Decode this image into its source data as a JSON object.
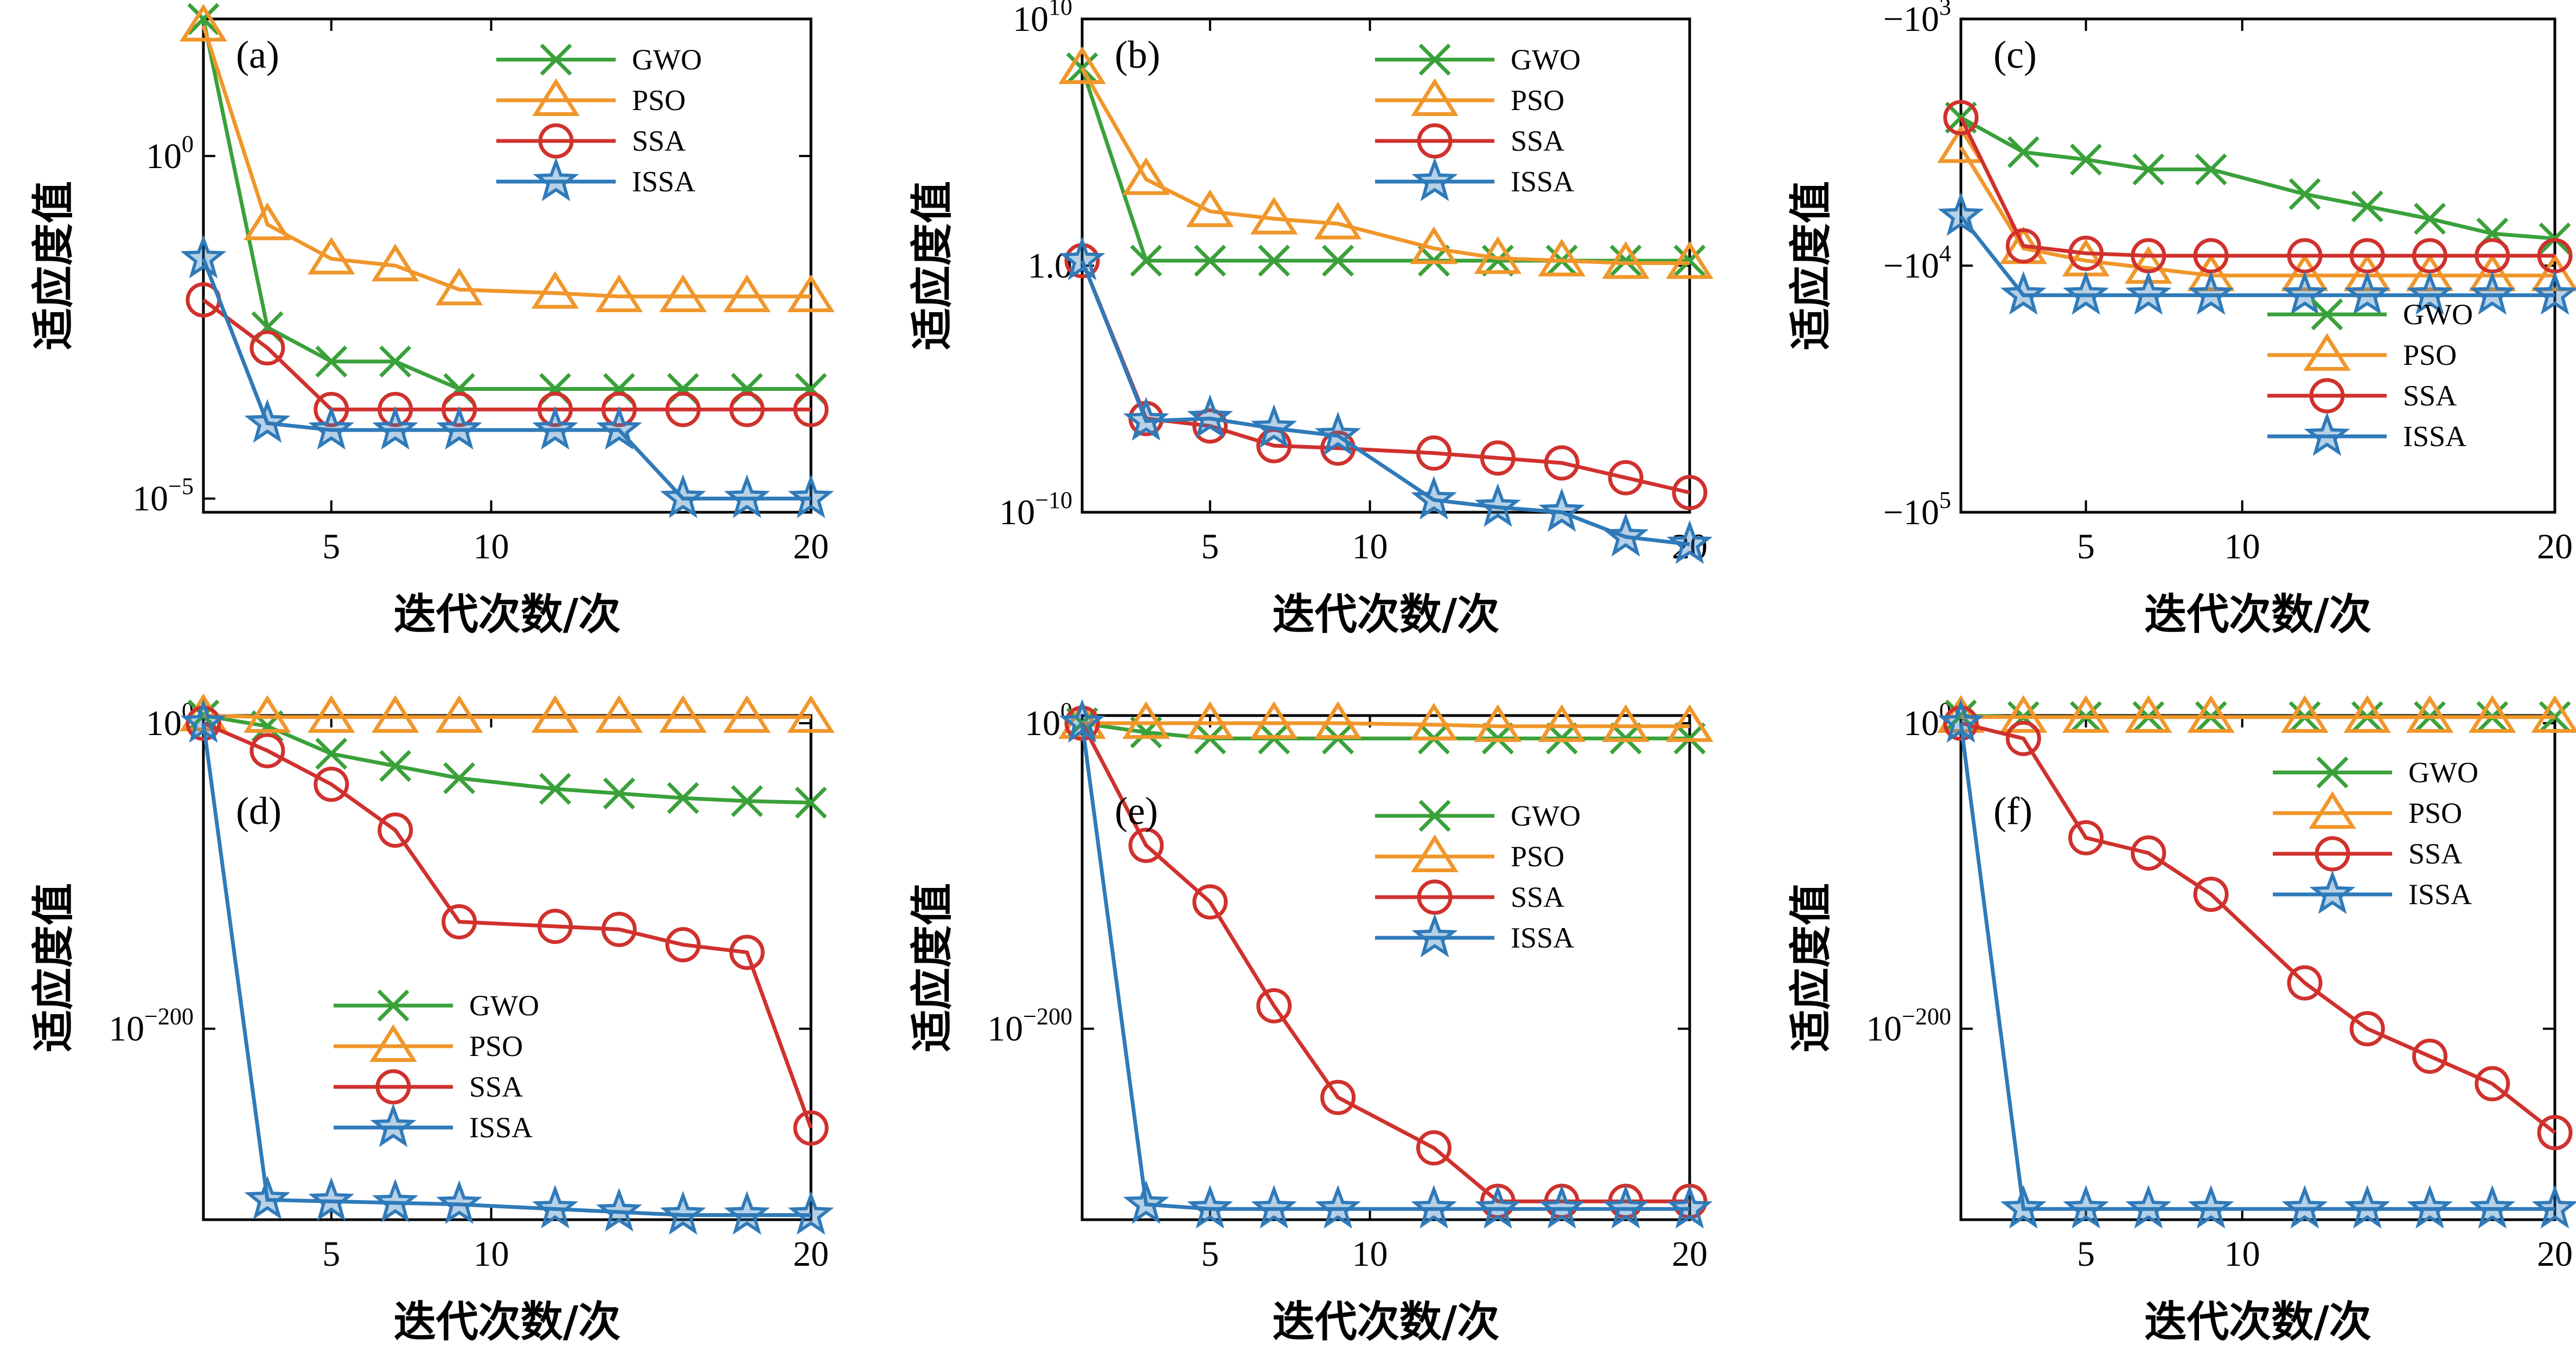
{
  "colors": {
    "GWO": "#3aa13a",
    "PSO": "#f0962a",
    "SSA": "#d0312d",
    "ISSA": "#2f7ab9"
  },
  "chart_data": [
    {
      "type": "line",
      "panel": "(a)",
      "xlabel": "迭代次数/次",
      "ylabel": "适应度值",
      "xlim": [
        1,
        20
      ],
      "xticks": [
        "5",
        "10",
        "20"
      ],
      "yscale": "log",
      "ylim_exp": [
        -5.2,
        2.0
      ],
      "yticks": [
        {
          "base": "10",
          "exp": "0",
          "value": 0
        },
        {
          "base": "10",
          "exp": "−5",
          "value": -5
        }
      ],
      "legend": "top-right",
      "x": [
        1,
        3,
        5,
        7,
        9,
        12,
        14,
        16,
        18,
        20
      ],
      "series": [
        {
          "name": "GWO",
          "marker": "x",
          "log_values": [
            2.0,
            -2.5,
            -3.0,
            -3.0,
            -3.4,
            -3.4,
            -3.4,
            -3.4,
            -3.4,
            -3.4
          ]
        },
        {
          "name": "PSO",
          "marker": "triangle",
          "log_values": [
            1.9,
            -1.0,
            -1.5,
            -1.6,
            -1.95,
            -2.0,
            -2.05,
            -2.05,
            -2.05,
            -2.05
          ]
        },
        {
          "name": "SSA",
          "marker": "circle",
          "log_values": [
            -2.1,
            -2.8,
            -3.7,
            -3.7,
            -3.7,
            -3.7,
            -3.7,
            -3.7,
            -3.7,
            -3.7
          ]
        },
        {
          "name": "ISSA",
          "marker": "star",
          "log_values": [
            -1.5,
            -3.9,
            -4.0,
            -4.0,
            -4.0,
            -4.0,
            -4.0,
            -5.0,
            -5.0,
            -5.0
          ]
        }
      ]
    },
    {
      "type": "line",
      "panel": "(b)",
      "xlabel": "迭代次数/次",
      "ylabel": "适应度值",
      "xlim": [
        1,
        20
      ],
      "xticks": [
        "5",
        "10",
        "20"
      ],
      "yscale": "log",
      "ylim_exp": [
        -10,
        10
      ],
      "yticks": [
        {
          "base": "10",
          "exp": "10",
          "value": 10
        },
        {
          "base": "10",
          "exp": "",
          "value": 0,
          "label": "1.0"
        },
        {
          "base": "10",
          "exp": "−10",
          "value": -10
        }
      ],
      "legend": "top-right",
      "x": [
        1,
        3,
        5,
        7,
        9,
        12,
        14,
        16,
        18,
        20
      ],
      "series": [
        {
          "name": "GWO",
          "marker": "x",
          "log_values": [
            8.0,
            0.2,
            0.2,
            0.2,
            0.2,
            0.2,
            0.2,
            0.2,
            0.2,
            0.2
          ]
        },
        {
          "name": "PSO",
          "marker": "triangle",
          "log_values": [
            8.0,
            3.5,
            2.2,
            1.9,
            1.7,
            0.7,
            0.3,
            0.2,
            0.1,
            0.1
          ]
        },
        {
          "name": "SSA",
          "marker": "circle",
          "log_values": [
            0.2,
            -6.2,
            -6.5,
            -7.3,
            -7.4,
            -7.6,
            -7.8,
            -8.0,
            -8.6,
            -9.2
          ]
        },
        {
          "name": "ISSA",
          "marker": "star",
          "log_values": [
            0.2,
            -6.3,
            -6.2,
            -6.6,
            -6.9,
            -9.5,
            -9.8,
            -10.0,
            -11.0,
            -11.3
          ]
        }
      ]
    },
    {
      "type": "line",
      "panel": "(c)",
      "xlabel": "迭代次数/次",
      "ylabel": "适应度值",
      "xlim": [
        1,
        20
      ],
      "xticks": [
        "5",
        "10",
        "20"
      ],
      "yscale": "neg-log",
      "ylim_exp": [
        3,
        5
      ],
      "yticks": [
        {
          "base": "−10",
          "exp": "3",
          "value": 3
        },
        {
          "base": "−10",
          "exp": "4",
          "value": 4
        },
        {
          "base": "−10",
          "exp": "5",
          "value": 5
        }
      ],
      "legend": "lower-right",
      "x": [
        1,
        3,
        5,
        7,
        9,
        12,
        14,
        16,
        18,
        20
      ],
      "series": [
        {
          "name": "GWO",
          "marker": "x",
          "log_values": [
            3.4,
            3.54,
            3.57,
            3.61,
            3.61,
            3.71,
            3.76,
            3.81,
            3.87,
            3.89
          ]
        },
        {
          "name": "PSO",
          "marker": "triangle",
          "log_values": [
            3.52,
            3.93,
            3.98,
            4.01,
            4.04,
            4.04,
            4.04,
            4.04,
            4.04,
            4.04
          ]
        },
        {
          "name": "SSA",
          "marker": "circle",
          "log_values": [
            3.4,
            3.92,
            3.95,
            3.96,
            3.96,
            3.96,
            3.96,
            3.96,
            3.96,
            3.96
          ]
        },
        {
          "name": "ISSA",
          "marker": "star",
          "log_values": [
            3.8,
            4.12,
            4.12,
            4.12,
            4.12,
            4.12,
            4.12,
            4.12,
            4.12,
            4.12
          ]
        }
      ]
    },
    {
      "type": "line",
      "panel": "(d)",
      "xlabel": "迭代次数/次",
      "ylabel": "适应度值",
      "xlim": [
        1,
        20
      ],
      "xticks": [
        "5",
        "10",
        "20"
      ],
      "yscale": "log",
      "ylim_exp": [
        -325,
        5
      ],
      "yticks": [
        {
          "base": "10",
          "exp": "0",
          "value": 0
        },
        {
          "base": "10",
          "exp": "−200",
          "value": -200
        }
      ],
      "legend": "lower-left",
      "x": [
        1,
        3,
        5,
        7,
        9,
        12,
        14,
        16,
        18,
        20
      ],
      "series": [
        {
          "name": "GWO",
          "marker": "x",
          "log_values": [
            5,
            -2,
            -20,
            -28,
            -36,
            -43,
            -46,
            -49,
            -51,
            -52
          ]
        },
        {
          "name": "PSO",
          "marker": "triangle",
          "log_values": [
            5,
            4,
            4,
            4,
            4,
            4,
            4,
            4,
            4,
            4
          ]
        },
        {
          "name": "SSA",
          "marker": "circle",
          "log_values": [
            0,
            -18,
            -40,
            -70,
            -130,
            -133,
            -135,
            -145,
            -150,
            -265
          ]
        },
        {
          "name": "ISSA",
          "marker": "star",
          "log_values": [
            0,
            -312,
            -313,
            -314,
            -315,
            -318,
            -320,
            -322,
            -322,
            -322
          ]
        }
      ]
    },
    {
      "type": "line",
      "panel": "(e)",
      "xlabel": "迭代次数/次",
      "ylabel": "适应度值",
      "xlim": [
        1,
        20
      ],
      "xticks": [
        "5",
        "10",
        "20"
      ],
      "yscale": "log",
      "ylim_exp": [
        -325,
        5
      ],
      "yticks": [
        {
          "base": "10",
          "exp": "0",
          "value": 0
        },
        {
          "base": "10",
          "exp": "−200",
          "value": -200
        }
      ],
      "legend": "top-right",
      "x": [
        1,
        3,
        5,
        7,
        9,
        12,
        14,
        16,
        18,
        20
      ],
      "series": [
        {
          "name": "GWO",
          "marker": "x",
          "log_values": [
            0,
            -6,
            -10,
            -10,
            -10,
            -10,
            -10,
            -10,
            -10,
            -10
          ]
        },
        {
          "name": "PSO",
          "marker": "triangle",
          "log_values": [
            0,
            0,
            0,
            0,
            0,
            -1,
            -2,
            -2,
            -2,
            -2
          ]
        },
        {
          "name": "SSA",
          "marker": "circle",
          "log_values": [
            0,
            -80,
            -117,
            -185,
            -245,
            -278,
            -313,
            -313,
            -313,
            -313
          ]
        },
        {
          "name": "ISSA",
          "marker": "star",
          "log_values": [
            0,
            -315,
            -318,
            -318,
            -318,
            -318,
            -318,
            -318,
            -318,
            -318
          ]
        }
      ]
    },
    {
      "type": "line",
      "panel": "(f)",
      "xlabel": "迭代次数/次",
      "ylabel": "适应度值",
      "xlim": [
        1,
        20
      ],
      "xticks": [
        "5",
        "10",
        "20"
      ],
      "yscale": "log",
      "ylim_exp": [
        -325,
        5
      ],
      "yticks": [
        {
          "base": "10",
          "exp": "0",
          "value": 0
        },
        {
          "base": "10",
          "exp": "−200",
          "value": -200
        }
      ],
      "legend": "top-right",
      "x": [
        1,
        3,
        5,
        7,
        9,
        12,
        14,
        16,
        18,
        20
      ],
      "series": [
        {
          "name": "GWO",
          "marker": "x",
          "log_values": [
            5,
            4,
            4,
            4,
            4,
            4,
            4,
            4,
            4,
            4
          ]
        },
        {
          "name": "PSO",
          "marker": "triangle",
          "log_values": [
            4,
            4,
            4,
            4,
            4,
            4,
            4,
            4,
            4,
            4
          ]
        },
        {
          "name": "SSA",
          "marker": "circle",
          "log_values": [
            0,
            -10,
            -75,
            -85,
            -112,
            -170,
            -200,
            -218,
            -236,
            -268
          ]
        },
        {
          "name": "ISSA",
          "marker": "star",
          "log_values": [
            0,
            -318,
            -318,
            -318,
            -318,
            -318,
            -318,
            -318,
            -318,
            -318
          ]
        }
      ]
    }
  ]
}
